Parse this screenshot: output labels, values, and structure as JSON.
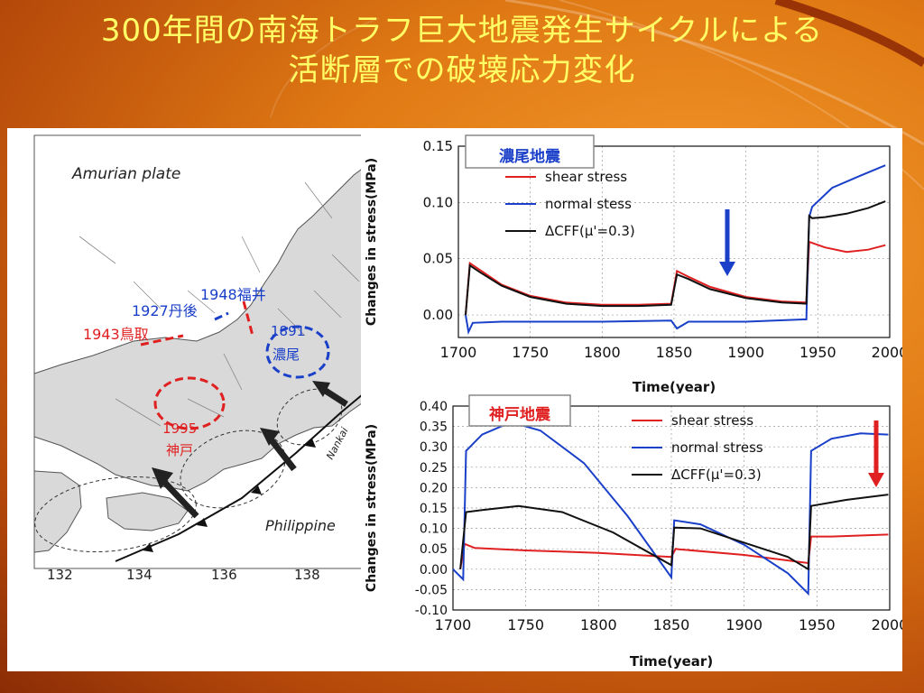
{
  "slide": {
    "title_line1": "300年間の南海トラフ巨大地震発生サイクルによる",
    "title_line2": "活断層での破壊応力変化"
  },
  "map": {
    "plate_top": "Amurian plate",
    "plate_bottom": "Philippine",
    "trough_label": "Nankai",
    "lon_ticks": [
      "132",
      "134",
      "136",
      "138"
    ],
    "quakes": [
      {
        "label": "1943鳥取",
        "color": "#e02020"
      },
      {
        "label": "1927丹後",
        "color": "#1a3fc8"
      },
      {
        "label": "1948福井",
        "color": "#1a3fc8"
      },
      {
        "label": "1891",
        "color": "#1a3fc8"
      },
      {
        "label": "濃尾",
        "color": "#1a3fc8"
      },
      {
        "label": "1995",
        "color": "#e02020"
      },
      {
        "label": "神戸",
        "color": "#e02020"
      }
    ]
  },
  "chart_data": [
    {
      "type": "line",
      "title": "濃尾地震",
      "xlabel": "Time(year)",
      "ylabel": "Changes in stress(MPa)",
      "xlim": [
        1700,
        2000
      ],
      "ylim": [
        -0.02,
        0.15
      ],
      "x_ticks": [
        "1700",
        "1750",
        "1800",
        "1850",
        "1900",
        "1950",
        "2000"
      ],
      "y_ticks": [
        "0.00",
        "0.05",
        "0.10",
        "0.15"
      ],
      "grid": true,
      "legend_position": "top-center",
      "arrow_color": "#1a3fc8",
      "series": [
        {
          "name": "shear stress",
          "color": "#e02020",
          "x": [
            1705,
            1708,
            1715,
            1730,
            1750,
            1775,
            1800,
            1825,
            1848,
            1852,
            1860,
            1875,
            1900,
            1925,
            1942,
            1944,
            1946,
            1955,
            1970,
            1985,
            1997
          ],
          "y": [
            0.0,
            0.046,
            0.04,
            0.027,
            0.017,
            0.011,
            0.009,
            0.009,
            0.01,
            0.039,
            0.034,
            0.025,
            0.016,
            0.012,
            0.011,
            0.065,
            0.064,
            0.06,
            0.056,
            0.058,
            0.062
          ]
        },
        {
          "name": "normal stess",
          "color": "#1a3fc8",
          "x": [
            1705,
            1707,
            1710,
            1730,
            1760,
            1800,
            1848,
            1852,
            1860,
            1900,
            1940,
            1942,
            1944,
            1946,
            1960,
            1980,
            1997
          ],
          "y": [
            0.0,
            -0.015,
            -0.007,
            -0.006,
            -0.006,
            -0.006,
            -0.005,
            -0.012,
            -0.006,
            -0.006,
            -0.004,
            -0.004,
            0.087,
            0.096,
            0.113,
            0.124,
            0.133
          ]
        },
        {
          "name": "ΔCFF(μ'=0.3)",
          "color": "#111111",
          "x": [
            1705,
            1708,
            1715,
            1730,
            1750,
            1775,
            1800,
            1825,
            1848,
            1852,
            1860,
            1875,
            1900,
            1925,
            1942,
            1944,
            1946,
            1955,
            1970,
            1985,
            1997
          ],
          "y": [
            0.0,
            0.044,
            0.038,
            0.026,
            0.016,
            0.01,
            0.008,
            0.008,
            0.009,
            0.036,
            0.032,
            0.023,
            0.015,
            0.011,
            0.01,
            0.088,
            0.086,
            0.087,
            0.09,
            0.095,
            0.101
          ]
        }
      ]
    },
    {
      "type": "line",
      "title": "神戸地震",
      "xlabel": "Time(year)",
      "ylabel": "Changes in stress(MPa)",
      "xlim": [
        1700,
        2000
      ],
      "ylim": [
        -0.1,
        0.4
      ],
      "x_ticks": [
        "1700",
        "1750",
        "1800",
        "1850",
        "1900",
        "1950",
        "2000"
      ],
      "y_ticks": [
        "-0.10",
        "-0.05",
        "0.00",
        "0.05",
        "0.10",
        "0.15",
        "0.20",
        "0.25",
        "0.30",
        "0.35",
        "0.40"
      ],
      "grid": true,
      "legend_position": "top-right",
      "arrow_color": "#e02020",
      "series": [
        {
          "name": "shear stress",
          "color": "#e02020",
          "x": [
            1705,
            1708,
            1715,
            1750,
            1800,
            1850,
            1853,
            1855,
            1900,
            1944,
            1946,
            1960,
            1999
          ],
          "y": [
            0.0,
            0.062,
            0.052,
            0.046,
            0.04,
            0.03,
            0.05,
            0.049,
            0.035,
            0.015,
            0.08,
            0.08,
            0.085
          ]
        },
        {
          "name": "normal stress",
          "color": "#1a3fc8",
          "x": [
            1700,
            1707,
            1709,
            1720,
            1735,
            1745,
            1760,
            1790,
            1820,
            1850,
            1852,
            1870,
            1900,
            1930,
            1944,
            1946,
            1960,
            1980,
            1999
          ],
          "y": [
            0.0,
            -0.025,
            0.29,
            0.33,
            0.353,
            0.355,
            0.34,
            0.26,
            0.13,
            -0.02,
            0.12,
            0.11,
            0.06,
            -0.01,
            -0.06,
            0.29,
            0.32,
            0.333,
            0.33
          ]
        },
        {
          "name": "ΔCFF(μ'=0.3)",
          "color": "#111111",
          "x": [
            1705,
            1709,
            1720,
            1745,
            1775,
            1810,
            1850,
            1852,
            1870,
            1900,
            1930,
            1944,
            1946,
            1970,
            1999
          ],
          "y": [
            0.0,
            0.14,
            0.145,
            0.155,
            0.14,
            0.09,
            0.01,
            0.102,
            0.1,
            0.065,
            0.03,
            0.0,
            0.155,
            0.17,
            0.183
          ]
        }
      ]
    }
  ]
}
